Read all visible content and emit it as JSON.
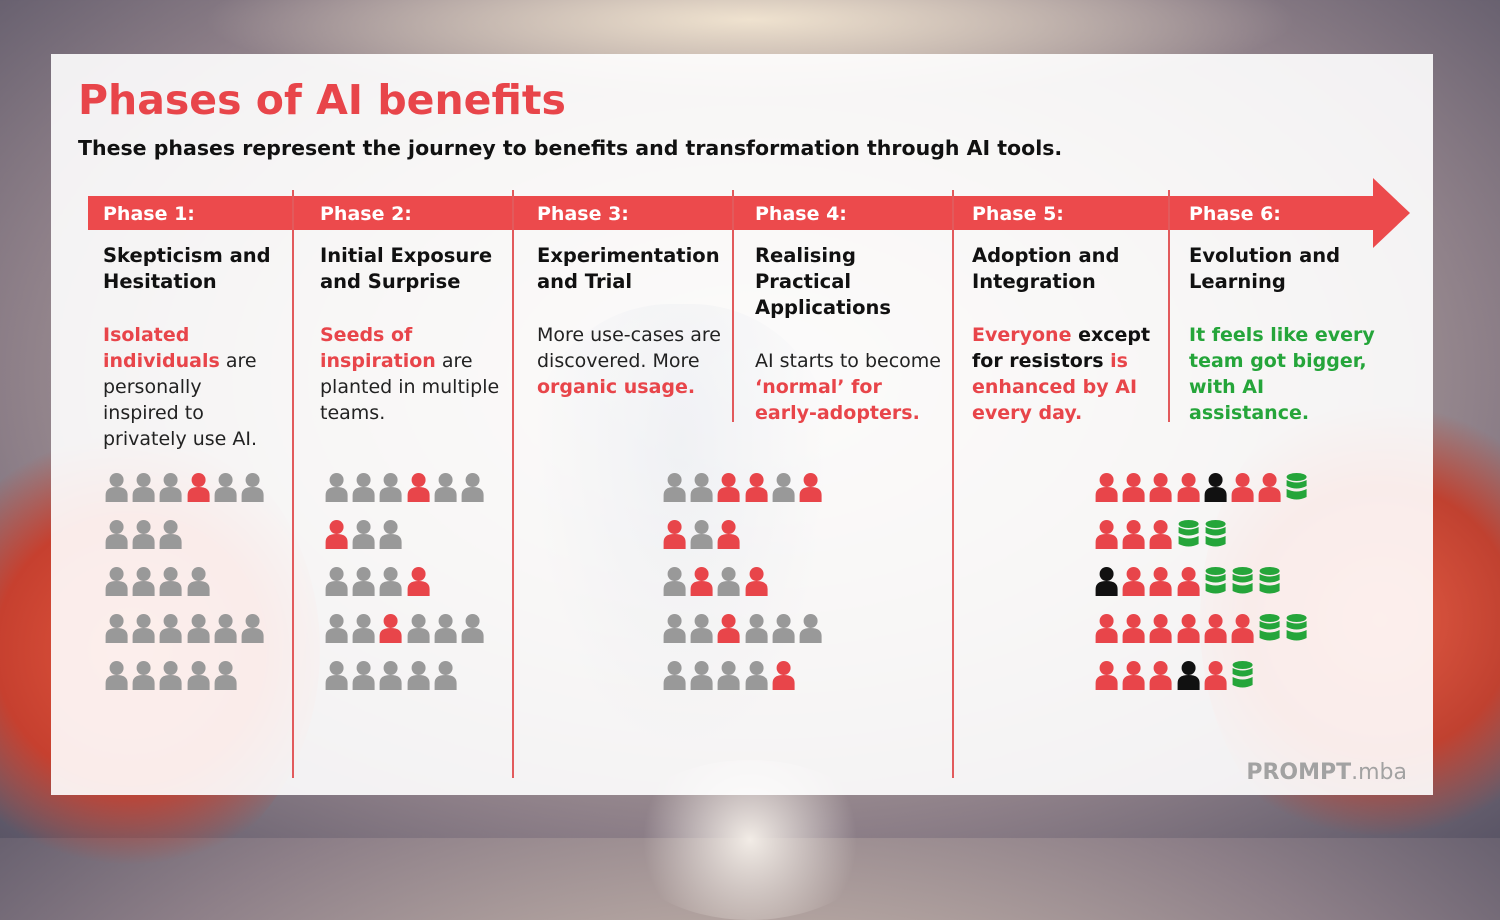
{
  "title": "Phases of AI benefits",
  "subtitle": "These phases represent the journey to benefits and transformation through AI tools.",
  "colors": {
    "accent": "#e8454a",
    "arrow": "#ec4a4c",
    "green": "#25a53a",
    "gray": "#999999",
    "black": "#111111"
  },
  "phases": [
    {
      "label": "Phase 1:",
      "name": "Skepticism and Hesitation",
      "desc": [
        {
          "t": "Isolated individuals",
          "c": "red"
        },
        {
          "t": " are personally inspired to privately use AI.",
          "c": ""
        }
      ]
    },
    {
      "label": "Phase 2:",
      "name": "Initial Exposure and Surprise",
      "desc": [
        {
          "t": "Seeds of inspiration",
          "c": "red"
        },
        {
          "t": " are planted in multiple teams.",
          "c": ""
        }
      ]
    },
    {
      "label": "Phase 3:",
      "name": "Experimentation and Trial",
      "desc": [
        {
          "t": "More use-cases are discovered. More ",
          "c": ""
        },
        {
          "t": "organic usage.",
          "c": "red"
        }
      ]
    },
    {
      "label": "Phase 4:",
      "name": "Realising Practical Applications",
      "desc": [
        {
          "t": "AI starts to become ",
          "c": ""
        },
        {
          "t": "‘normal’ for early-adopters.",
          "c": "red"
        }
      ]
    },
    {
      "label": "Phase 5:",
      "name": "Adoption and Integration",
      "desc": [
        {
          "t": "Everyone",
          "c": "red"
        },
        {
          "t": " except for resistors",
          "c": "blk"
        },
        {
          "t": " is enhanced by AI every day.",
          "c": "red"
        }
      ]
    },
    {
      "label": "Phase 6:",
      "name": "Evolution and Learning",
      "desc": [
        {
          "t": "It feels like every team got bigger, with AI assistance.",
          "c": "green"
        }
      ]
    }
  ],
  "people_legend": {
    "g": "gray-person-icon",
    "r": "red-person-icon",
    "k": "black-person-icon",
    "d": "green-database-icon"
  },
  "people_groups": [
    {
      "phase": 1,
      "rows": [
        "gggrgg",
        "ggg",
        "gggg",
        "gggggg",
        "ggggg"
      ]
    },
    {
      "phase": 2,
      "rows": [
        "gggrgg",
        "rgg",
        "gggr",
        "ggrggg",
        "ggggg"
      ]
    },
    {
      "phase": 3,
      "rows": [
        "ggrrgr",
        "rgr",
        "grgr",
        "ggrggg",
        "ggggr"
      ]
    },
    {
      "phase": 5,
      "rows": [
        "rrrrkrrd",
        "rrrdd",
        "krrrddd",
        "rrrrrrdd",
        "rrrkrd"
      ]
    }
  ],
  "brand": {
    "bold": "PROMPT",
    "light": ".mba"
  }
}
